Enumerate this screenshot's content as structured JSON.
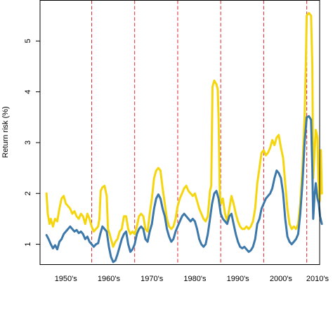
{
  "chart_data": {
    "type": "line",
    "title": "",
    "xlabel": "",
    "ylabel": "Return risk (%)",
    "xlim": [
      1946.5,
      2011.5
    ],
    "ylim": [
      0.6,
      5.8
    ],
    "y_ticks": [
      1,
      2,
      3,
      4,
      5
    ],
    "x_ticks": [
      {
        "label": "1950's",
        "x": 1952.5
      },
      {
        "label": "1960's",
        "x": 1962.5
      },
      {
        "label": "1970's",
        "x": 1972.5
      },
      {
        "label": "1980's",
        "x": 1982.5
      },
      {
        "label": "1990's",
        "x": 1992.5
      },
      {
        "label": "2000's",
        "x": 2002.5
      },
      {
        "label": "2010's",
        "x": 2011.0
      }
    ],
    "reference_lines_x": [
      1958.5,
      1968.5,
      1978.5,
      1988.5,
      1998.5,
      2008.5
    ],
    "reference_line_color": "#e0222a",
    "grid": false,
    "series": [
      {
        "color": "#f5d60e",
        "values": [
          [
            1948.0,
            2.0
          ],
          [
            1948.3,
            1.6
          ],
          [
            1948.7,
            1.4
          ],
          [
            1949.0,
            1.5
          ],
          [
            1949.5,
            1.35
          ],
          [
            1950.0,
            1.5
          ],
          [
            1950.5,
            1.45
          ],
          [
            1951.0,
            1.7
          ],
          [
            1951.5,
            1.9
          ],
          [
            1952.0,
            1.95
          ],
          [
            1952.5,
            1.8
          ],
          [
            1953.0,
            1.75
          ],
          [
            1953.5,
            1.7
          ],
          [
            1954.0,
            1.6
          ],
          [
            1954.5,
            1.65
          ],
          [
            1955.0,
            1.55
          ],
          [
            1955.5,
            1.5
          ],
          [
            1956.0,
            1.6
          ],
          [
            1956.5,
            1.55
          ],
          [
            1957.0,
            1.4
          ],
          [
            1957.5,
            1.6
          ],
          [
            1958.0,
            1.5
          ],
          [
            1958.5,
            1.35
          ],
          [
            1959.0,
            1.25
          ],
          [
            1959.5,
            1.3
          ],
          [
            1960.0,
            1.35
          ],
          [
            1960.3,
            1.5
          ],
          [
            1960.6,
            2.05
          ],
          [
            1961.0,
            2.12
          ],
          [
            1961.5,
            2.15
          ],
          [
            1962.0,
            1.95
          ],
          [
            1962.3,
            1.3
          ],
          [
            1962.7,
            1.2
          ],
          [
            1963.0,
            1.1
          ],
          [
            1963.5,
            0.95
          ],
          [
            1964.0,
            1.05
          ],
          [
            1964.5,
            1.1
          ],
          [
            1965.0,
            1.25
          ],
          [
            1965.5,
            1.3
          ],
          [
            1966.0,
            1.55
          ],
          [
            1966.5,
            1.55
          ],
          [
            1967.0,
            1.3
          ],
          [
            1967.5,
            1.2
          ],
          [
            1968.0,
            1.25
          ],
          [
            1968.5,
            1.2
          ],
          [
            1969.0,
            1.35
          ],
          [
            1969.5,
            1.55
          ],
          [
            1970.0,
            1.6
          ],
          [
            1970.5,
            1.55
          ],
          [
            1971.0,
            1.3
          ],
          [
            1971.5,
            1.25
          ],
          [
            1972.0,
            1.6
          ],
          [
            1972.5,
            1.9
          ],
          [
            1973.0,
            2.3
          ],
          [
            1973.5,
            2.45
          ],
          [
            1974.0,
            2.5
          ],
          [
            1974.5,
            2.45
          ],
          [
            1975.0,
            2.1
          ],
          [
            1975.5,
            1.8
          ],
          [
            1976.0,
            1.5
          ],
          [
            1976.5,
            1.35
          ],
          [
            1977.0,
            1.3
          ],
          [
            1977.5,
            1.35
          ],
          [
            1978.0,
            1.5
          ],
          [
            1978.5,
            1.75
          ],
          [
            1979.0,
            1.9
          ],
          [
            1979.5,
            2.0
          ],
          [
            1980.0,
            2.1
          ],
          [
            1980.5,
            2.15
          ],
          [
            1981.0,
            2.05
          ],
          [
            1981.5,
            2.0
          ],
          [
            1982.0,
            1.95
          ],
          [
            1982.5,
            2.0
          ],
          [
            1983.0,
            1.85
          ],
          [
            1983.5,
            1.7
          ],
          [
            1984.0,
            1.6
          ],
          [
            1984.5,
            1.5
          ],
          [
            1985.0,
            1.45
          ],
          [
            1985.5,
            1.55
          ],
          [
            1986.0,
            2.05
          ],
          [
            1986.3,
            2.15
          ],
          [
            1986.6,
            4.1
          ],
          [
            1987.0,
            4.22
          ],
          [
            1987.5,
            4.15
          ],
          [
            1987.8,
            4.05
          ],
          [
            1988.0,
            3.5
          ],
          [
            1988.3,
            2.0
          ],
          [
            1988.6,
            1.8
          ],
          [
            1989.0,
            1.9
          ],
          [
            1989.5,
            1.6
          ],
          [
            1990.0,
            1.45
          ],
          [
            1990.5,
            1.7
          ],
          [
            1991.0,
            1.95
          ],
          [
            1991.5,
            1.8
          ],
          [
            1992.0,
            1.6
          ],
          [
            1992.5,
            1.45
          ],
          [
            1993.0,
            1.35
          ],
          [
            1993.5,
            1.3
          ],
          [
            1994.0,
            1.3
          ],
          [
            1994.5,
            1.35
          ],
          [
            1995.0,
            1.3
          ],
          [
            1995.5,
            1.35
          ],
          [
            1996.0,
            1.45
          ],
          [
            1996.5,
            1.7
          ],
          [
            1997.0,
            2.2
          ],
          [
            1997.5,
            2.5
          ],
          [
            1998.0,
            2.8
          ],
          [
            1998.5,
            2.85
          ],
          [
            1999.0,
            2.75
          ],
          [
            1999.5,
            2.8
          ],
          [
            2000.0,
            2.9
          ],
          [
            2000.5,
            3.05
          ],
          [
            2001.0,
            2.95
          ],
          [
            2001.5,
            3.1
          ],
          [
            2002.0,
            3.15
          ],
          [
            2002.5,
            2.9
          ],
          [
            2003.0,
            2.7
          ],
          [
            2003.5,
            2.2
          ],
          [
            2004.0,
            1.7
          ],
          [
            2004.5,
            1.4
          ],
          [
            2005.0,
            1.3
          ],
          [
            2005.5,
            1.35
          ],
          [
            2006.0,
            1.3
          ],
          [
            2006.5,
            1.4
          ],
          [
            2007.0,
            1.8
          ],
          [
            2007.5,
            2.5
          ],
          [
            2008.0,
            3.5
          ],
          [
            2008.3,
            4.6
          ],
          [
            2008.5,
            5.5
          ],
          [
            2009.0,
            5.55
          ],
          [
            2009.5,
            5.5
          ],
          [
            2009.8,
            4.5
          ],
          [
            2010.0,
            2.3
          ],
          [
            2010.3,
            2.8
          ],
          [
            2010.6,
            3.25
          ],
          [
            2011.0,
            3.1
          ],
          [
            2011.2,
            2.3
          ],
          [
            2011.5,
            1.85
          ],
          [
            2011.8,
            2.85
          ],
          [
            2012.0,
            2.0
          ]
        ]
      },
      {
        "color": "#3d78aa",
        "values": [
          [
            1948.0,
            1.18
          ],
          [
            1948.5,
            1.1
          ],
          [
            1949.0,
            1.0
          ],
          [
            1949.5,
            0.92
          ],
          [
            1950.0,
            0.98
          ],
          [
            1950.5,
            0.9
          ],
          [
            1951.0,
            1.05
          ],
          [
            1951.5,
            1.1
          ],
          [
            1952.0,
            1.2
          ],
          [
            1952.5,
            1.25
          ],
          [
            1953.0,
            1.3
          ],
          [
            1953.5,
            1.35
          ],
          [
            1954.0,
            1.3
          ],
          [
            1954.5,
            1.25
          ],
          [
            1955.0,
            1.28
          ],
          [
            1955.5,
            1.22
          ],
          [
            1956.0,
            1.25
          ],
          [
            1956.5,
            1.2
          ],
          [
            1957.0,
            1.1
          ],
          [
            1957.5,
            1.15
          ],
          [
            1958.0,
            1.05
          ],
          [
            1958.5,
            1.0
          ],
          [
            1959.0,
            0.95
          ],
          [
            1959.5,
            1.0
          ],
          [
            1960.0,
            1.02
          ],
          [
            1960.5,
            1.2
          ],
          [
            1961.0,
            1.35
          ],
          [
            1961.5,
            1.3
          ],
          [
            1962.0,
            1.25
          ],
          [
            1962.5,
            0.95
          ],
          [
            1963.0,
            0.75
          ],
          [
            1963.5,
            0.65
          ],
          [
            1964.0,
            0.68
          ],
          [
            1964.5,
            0.8
          ],
          [
            1965.0,
            0.95
          ],
          [
            1965.5,
            1.1
          ],
          [
            1966.0,
            1.2
          ],
          [
            1966.5,
            1.25
          ],
          [
            1967.0,
            1.0
          ],
          [
            1967.5,
            0.85
          ],
          [
            1968.0,
            0.9
          ],
          [
            1968.5,
            1.0
          ],
          [
            1969.0,
            1.2
          ],
          [
            1969.5,
            1.3
          ],
          [
            1970.0,
            1.35
          ],
          [
            1970.5,
            1.3
          ],
          [
            1971.0,
            1.1
          ],
          [
            1971.5,
            1.05
          ],
          [
            1972.0,
            1.25
          ],
          [
            1972.5,
            1.4
          ],
          [
            1973.0,
            1.7
          ],
          [
            1973.5,
            1.9
          ],
          [
            1974.0,
            1.98
          ],
          [
            1974.5,
            1.9
          ],
          [
            1975.0,
            1.7
          ],
          [
            1975.5,
            1.55
          ],
          [
            1976.0,
            1.3
          ],
          [
            1976.5,
            1.15
          ],
          [
            1977.0,
            1.05
          ],
          [
            1977.5,
            1.1
          ],
          [
            1978.0,
            1.25
          ],
          [
            1978.5,
            1.35
          ],
          [
            1979.0,
            1.45
          ],
          [
            1979.5,
            1.55
          ],
          [
            1980.0,
            1.6
          ],
          [
            1980.5,
            1.55
          ],
          [
            1981.0,
            1.5
          ],
          [
            1981.5,
            1.45
          ],
          [
            1982.0,
            1.5
          ],
          [
            1982.5,
            1.45
          ],
          [
            1983.0,
            1.3
          ],
          [
            1983.5,
            1.1
          ],
          [
            1984.0,
            1.0
          ],
          [
            1984.5,
            0.95
          ],
          [
            1985.0,
            1.0
          ],
          [
            1985.5,
            1.2
          ],
          [
            1986.0,
            1.5
          ],
          [
            1986.5,
            1.8
          ],
          [
            1987.0,
            2.0
          ],
          [
            1987.5,
            2.05
          ],
          [
            1988.0,
            1.9
          ],
          [
            1988.5,
            1.6
          ],
          [
            1989.0,
            1.5
          ],
          [
            1989.5,
            1.45
          ],
          [
            1990.0,
            1.4
          ],
          [
            1990.5,
            1.55
          ],
          [
            1991.0,
            1.6
          ],
          [
            1991.5,
            1.4
          ],
          [
            1992.0,
            1.2
          ],
          [
            1992.5,
            1.05
          ],
          [
            1993.0,
            0.95
          ],
          [
            1993.5,
            0.92
          ],
          [
            1994.0,
            0.95
          ],
          [
            1994.5,
            0.9
          ],
          [
            1995.0,
            0.85
          ],
          [
            1995.5,
            0.88
          ],
          [
            1996.0,
            0.95
          ],
          [
            1996.5,
            1.1
          ],
          [
            1997.0,
            1.4
          ],
          [
            1997.5,
            1.5
          ],
          [
            1998.0,
            1.7
          ],
          [
            1998.5,
            1.8
          ],
          [
            1999.0,
            1.9
          ],
          [
            1999.5,
            1.95
          ],
          [
            2000.0,
            2.0
          ],
          [
            2000.5,
            2.1
          ],
          [
            2001.0,
            2.3
          ],
          [
            2001.5,
            2.45
          ],
          [
            2002.0,
            2.4
          ],
          [
            2002.5,
            2.3
          ],
          [
            2003.0,
            2.0
          ],
          [
            2003.5,
            1.5
          ],
          [
            2004.0,
            1.15
          ],
          [
            2004.5,
            1.05
          ],
          [
            2005.0,
            1.0
          ],
          [
            2005.5,
            1.05
          ],
          [
            2006.0,
            1.1
          ],
          [
            2006.5,
            1.2
          ],
          [
            2007.0,
            1.6
          ],
          [
            2007.5,
            2.2
          ],
          [
            2008.0,
            3.0
          ],
          [
            2008.5,
            3.5
          ],
          [
            2009.0,
            3.52
          ],
          [
            2009.5,
            3.45
          ],
          [
            2009.8,
            2.5
          ],
          [
            2010.0,
            1.5
          ],
          [
            2010.3,
            1.95
          ],
          [
            2010.6,
            2.2
          ],
          [
            2011.0,
            1.9
          ],
          [
            2011.3,
            1.8
          ],
          [
            2011.6,
            1.55
          ],
          [
            2012.0,
            1.4
          ]
        ]
      }
    ]
  }
}
